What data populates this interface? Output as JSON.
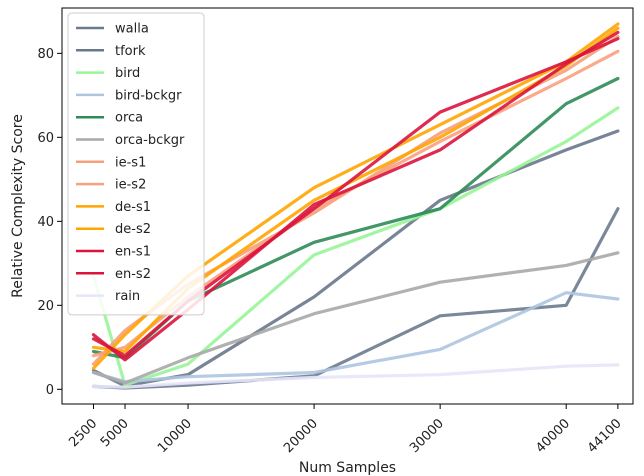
{
  "chart_data": {
    "type": "line",
    "xlabel": "Num Samples",
    "ylabel": "Relative Complexity Score",
    "x": [
      2500,
      5000,
      10000,
      20000,
      30000,
      40000,
      44100
    ],
    "x_tick_labels": [
      "2500",
      "5000",
      "10000",
      "20000",
      "30000",
      "40000",
      "44100"
    ],
    "y_ticks": [
      0,
      20,
      40,
      60,
      80
    ],
    "xlim": [
      0,
      45300
    ],
    "ylim": [
      -3.5,
      90.8
    ],
    "grid": false,
    "legend_position": "top-left",
    "series": [
      {
        "name": "walla",
        "color": "#6b7b8f",
        "values": [
          0.7,
          0.3,
          1.0,
          3.2,
          17.5,
          20.0,
          43.0
        ]
      },
      {
        "name": "tfork",
        "color": "#6a788c",
        "values": [
          4.5,
          0.8,
          3.5,
          22.0,
          45.0,
          57.0,
          61.5
        ]
      },
      {
        "name": "bird",
        "color": "#98f598",
        "values": [
          27.0,
          1.0,
          6.0,
          32.0,
          43.0,
          59.0,
          67.0
        ]
      },
      {
        "name": "bird-bckgr",
        "color": "#aec5e0",
        "values": [
          4.0,
          1.8,
          3.0,
          4.0,
          9.5,
          23.0,
          21.5
        ]
      },
      {
        "name": "orca",
        "color": "#2e8b57",
        "values": [
          9.0,
          7.5,
          21.0,
          35.0,
          43.0,
          68.0,
          74.0
        ]
      },
      {
        "name": "orca-bckgr",
        "color": "#a9a9a9",
        "values": [
          4.0,
          1.5,
          7.5,
          18.0,
          25.5,
          29.5,
          32.5
        ]
      },
      {
        "name": "ie-s1",
        "color": "#f5a07a",
        "values": [
          6.0,
          14.0,
          25.0,
          42.0,
          61.0,
          76.0,
          84.0
        ]
      },
      {
        "name": "ie-s2",
        "color": "#f9a07e",
        "values": [
          8.0,
          10.0,
          22.0,
          43.0,
          59.0,
          74.0,
          80.5
        ]
      },
      {
        "name": "de-s1",
        "color": "#ffa500",
        "values": [
          5.0,
          13.0,
          27.0,
          48.0,
          63.0,
          78.0,
          87.0
        ]
      },
      {
        "name": "de-s2",
        "color": "#ffa500",
        "values": [
          10.0,
          9.0,
          24.0,
          45.0,
          60.0,
          77.0,
          86.0
        ]
      },
      {
        "name": "en-s1",
        "color": "#dc143c",
        "values": [
          12.0,
          8.0,
          21.0,
          43.0,
          66.0,
          78.0,
          83.5
        ]
      },
      {
        "name": "en-s2",
        "color": "#dc143c",
        "values": [
          13.0,
          7.0,
          19.0,
          44.0,
          57.0,
          77.5,
          85.0
        ]
      },
      {
        "name": "rain",
        "color": "#e6e6fa",
        "values": [
          0.7,
          0.5,
          1.5,
          2.8,
          3.5,
          5.5,
          5.8
        ]
      }
    ]
  }
}
